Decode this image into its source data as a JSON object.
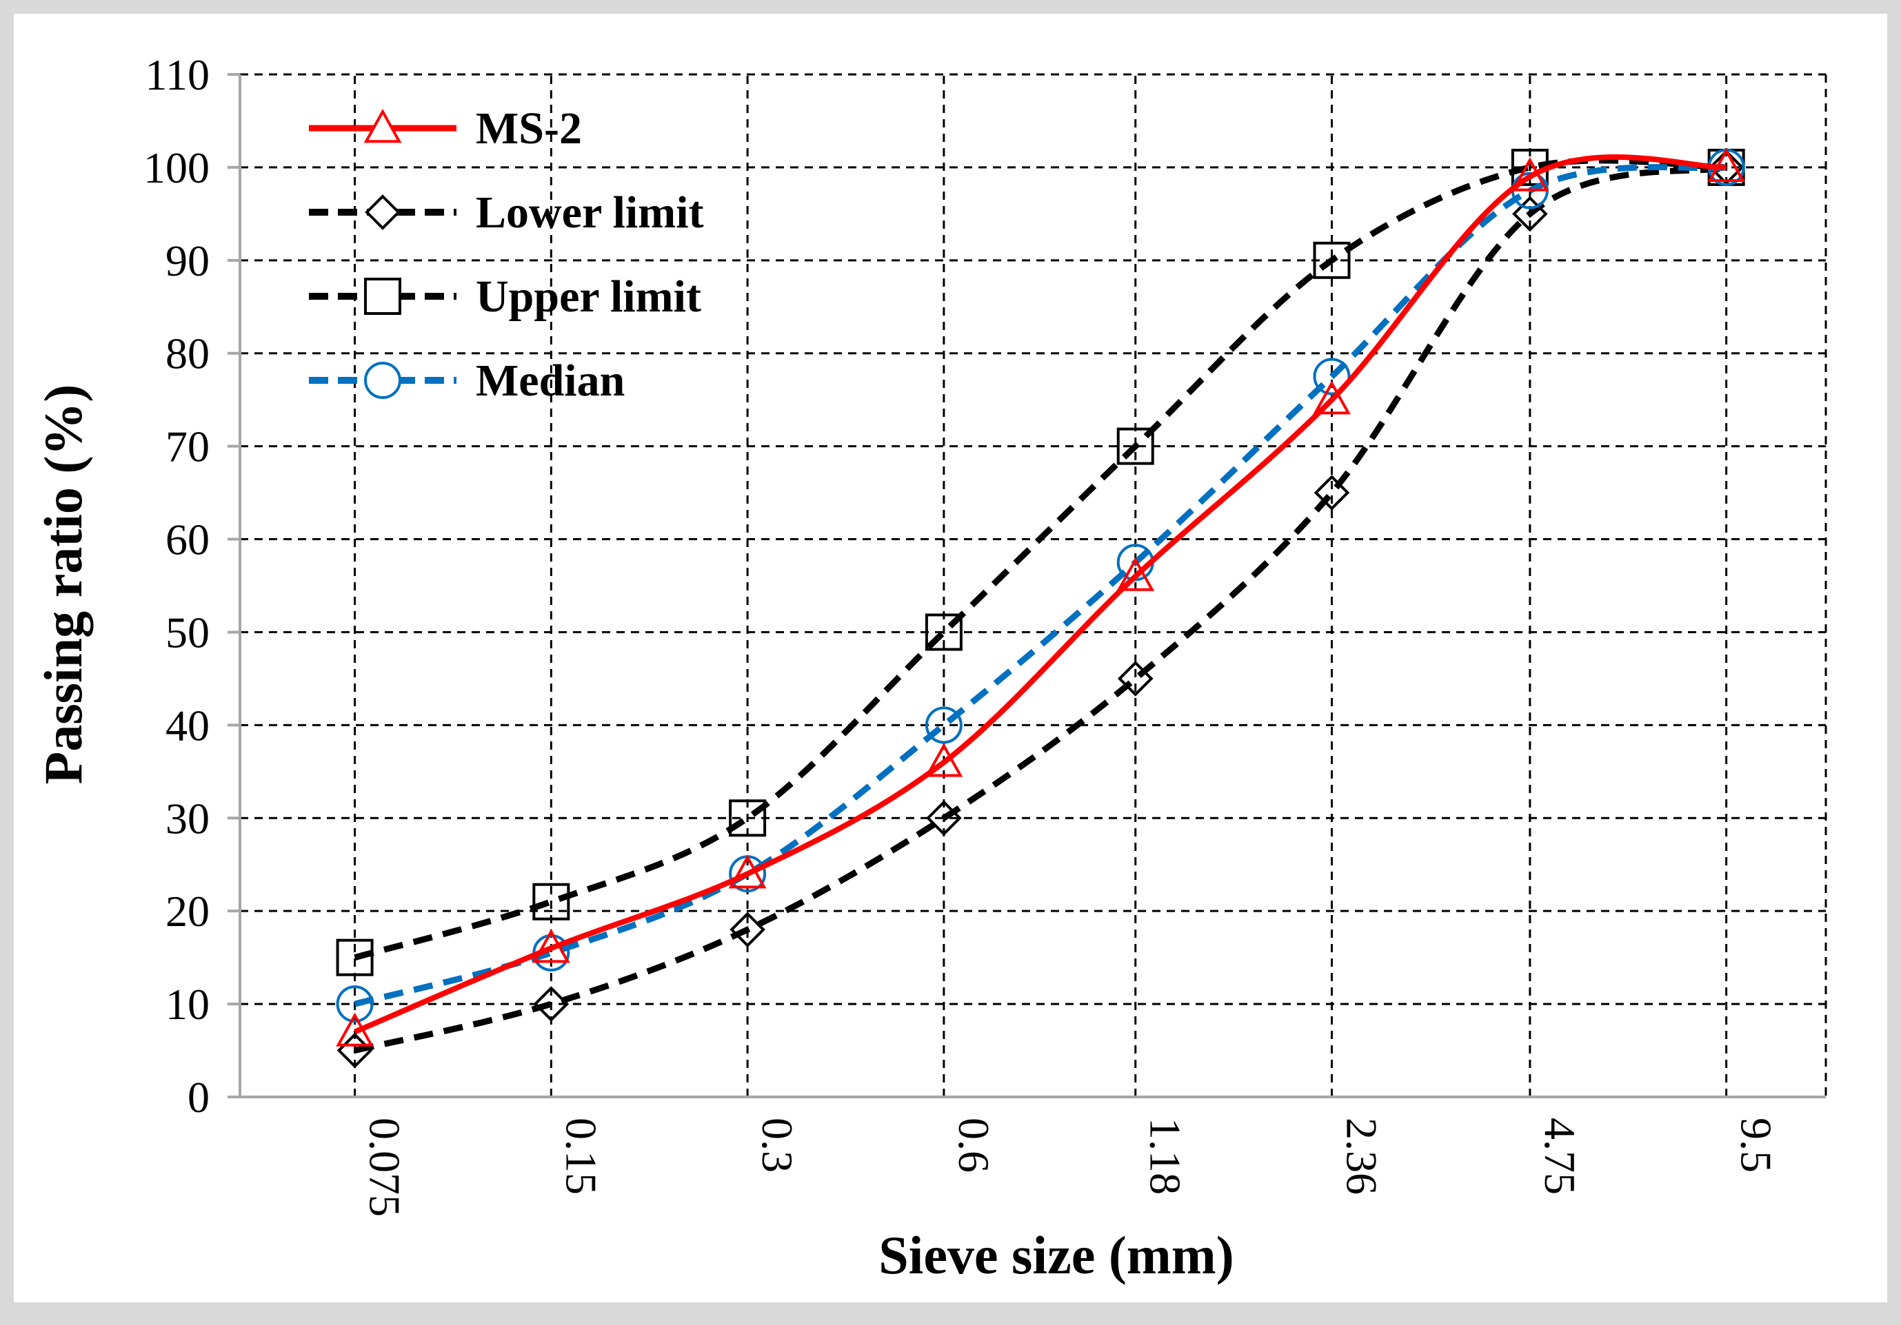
{
  "chart_data": {
    "type": "line",
    "xlabel": "Sieve size (mm)",
    "ylabel": "Passing ratio (%)",
    "ylim": [
      0,
      110
    ],
    "ytick_step": 10,
    "ytick_labels": [
      "0",
      "10",
      "20",
      "30",
      "40",
      "50",
      "60",
      "70",
      "80",
      "90",
      "100",
      "110"
    ],
    "x_scale": "log",
    "xlim": [
      0.05,
      13.5
    ],
    "categories": [
      "0.075",
      "0.15",
      "0.3",
      "0.6",
      "1.18",
      "2.36",
      "4.75",
      "9.5"
    ],
    "x": [
      0.075,
      0.15,
      0.3,
      0.6,
      1.18,
      2.36,
      4.75,
      9.5
    ],
    "grid": true,
    "legend_position": "top-left",
    "series": [
      {
        "name": "MS-2",
        "values": [
          7,
          16,
          24,
          36,
          56,
          75,
          99,
          100
        ],
        "color": "#FF0000",
        "dash": "solid",
        "marker": "triangle"
      },
      {
        "name": "Lower limit",
        "values": [
          5,
          10,
          18,
          30,
          45,
          65,
          95,
          100
        ],
        "color": "#000000",
        "dash": "dashed",
        "marker": "diamond"
      },
      {
        "name": "Upper limit",
        "values": [
          15,
          21,
          30,
          50,
          70,
          90,
          100,
          100
        ],
        "color": "#000000",
        "dash": "dashed",
        "marker": "square"
      },
      {
        "name": "Median",
        "values": [
          10,
          15.5,
          24,
          40,
          57.5,
          77.5,
          97.5,
          100
        ],
        "color": "#0070C0",
        "dash": "dashed",
        "marker": "circle"
      }
    ]
  },
  "colors": {
    "frame": "#D9D9D9",
    "plot_bg": "#FFFFFF",
    "grid": "#000000"
  }
}
